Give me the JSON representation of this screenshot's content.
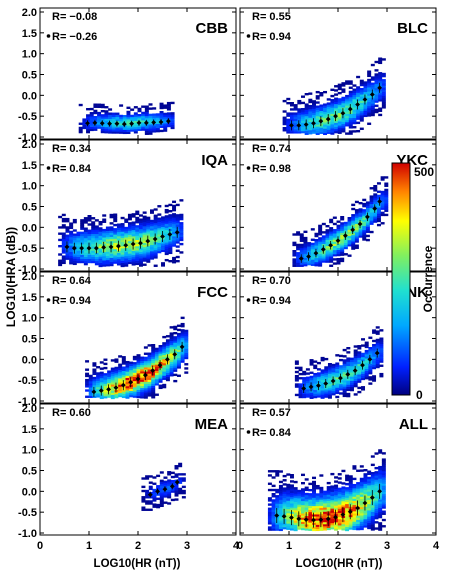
{
  "figure": {
    "ylabel": "LOG10(HRA (dB))",
    "xlabel": "LOG10(HR (nT))",
    "colorbar_label": "Occurrence",
    "colorbar_ticks": [
      "500",
      "0"
    ],
    "x_ticks": [
      "0",
      "1",
      "2",
      "3",
      "4"
    ],
    "y_ticks": [
      "-1.0",
      "-0.5",
      "0.0",
      "0.5",
      "1.0",
      "1.5",
      "2.0"
    ]
  },
  "chart_data": [
    {
      "type": "heatmap",
      "station": "CBB",
      "r_all": "R= −0.08",
      "r_mean": "R= −0.26",
      "xlim": [
        0,
        4
      ],
      "ylim": [
        -1.0,
        2.0
      ],
      "mean_curve": {
        "x": [
          0.97,
          1.12,
          1.27,
          1.42,
          1.57,
          1.72,
          1.87,
          2.02,
          2.17,
          2.32,
          2.47,
          2.62
        ],
        "y": [
          -0.67,
          -0.66,
          -0.67,
          -0.68,
          -0.68,
          -0.69,
          -0.68,
          -0.66,
          -0.66,
          -0.65,
          -0.64,
          -0.62
        ]
      }
    },
    {
      "type": "heatmap",
      "station": "BLC",
      "r_all": "R=  0.55",
      "r_mean": "R=  0.94",
      "xlim": [
        0,
        4
      ],
      "ylim": [
        -1.0,
        2.0
      ],
      "mean_curve": {
        "x": [
          1.05,
          1.2,
          1.35,
          1.5,
          1.65,
          1.8,
          1.95,
          2.1,
          2.25,
          2.4,
          2.55,
          2.7,
          2.85
        ],
        "y": [
          -0.72,
          -0.72,
          -0.7,
          -0.67,
          -0.62,
          -0.57,
          -0.5,
          -0.43,
          -0.33,
          -0.22,
          -0.1,
          0.02,
          0.18
        ]
      }
    },
    {
      "type": "heatmap",
      "station": "IQA",
      "r_all": "R=  0.34",
      "r_mean": "R=  0.84",
      "xlim": [
        0,
        4
      ],
      "ylim": [
        -1.0,
        2.0
      ],
      "mean_curve": {
        "x": [
          0.55,
          0.7,
          0.85,
          1.0,
          1.15,
          1.3,
          1.45,
          1.6,
          1.75,
          1.9,
          2.05,
          2.2,
          2.35,
          2.5,
          2.65,
          2.8
        ],
        "y": [
          -0.47,
          -0.5,
          -0.5,
          -0.5,
          -0.5,
          -0.48,
          -0.47,
          -0.45,
          -0.43,
          -0.4,
          -0.38,
          -0.33,
          -0.28,
          -0.22,
          -0.17,
          -0.12
        ]
      }
    },
    {
      "type": "heatmap",
      "station": "YKC",
      "r_all": "R=  0.74",
      "r_mean": "R=  0.98",
      "xlim": [
        0,
        4
      ],
      "ylim": [
        -1.0,
        2.0
      ],
      "mean_curve": {
        "x": [
          1.25,
          1.4,
          1.55,
          1.7,
          1.85,
          2.0,
          2.15,
          2.3,
          2.45,
          2.6,
          2.75,
          2.85
        ],
        "y": [
          -0.75,
          -0.7,
          -0.62,
          -0.53,
          -0.43,
          -0.32,
          -0.2,
          -0.06,
          0.08,
          0.25,
          0.45,
          0.62
        ]
      }
    },
    {
      "type": "heatmap",
      "station": "FCC",
      "r_all": "R=  0.64",
      "r_mean": "R=  0.94",
      "xlim": [
        0,
        4
      ],
      "ylim": [
        -1.0,
        2.0
      ],
      "mean_curve": {
        "x": [
          1.1,
          1.25,
          1.4,
          1.55,
          1.7,
          1.85,
          2.0,
          2.15,
          2.3,
          2.45,
          2.6,
          2.75,
          2.9
        ],
        "y": [
          -0.78,
          -0.75,
          -0.72,
          -0.68,
          -0.62,
          -0.55,
          -0.47,
          -0.38,
          -0.27,
          -0.14,
          0.0,
          0.12,
          0.3
        ]
      }
    },
    {
      "type": "heatmap",
      "station": "SNK",
      "r_all": "R=  0.70",
      "r_mean": "R=  0.94",
      "xlim": [
        0,
        4
      ],
      "ylim": [
        -1.0,
        2.0
      ],
      "mean_curve": {
        "x": [
          1.3,
          1.45,
          1.6,
          1.75,
          1.9,
          2.05,
          2.2,
          2.35,
          2.5,
          2.65,
          2.8
        ],
        "y": [
          -0.7,
          -0.66,
          -0.63,
          -0.58,
          -0.52,
          -0.45,
          -0.36,
          -0.27,
          -0.14,
          0.0,
          0.15
        ]
      }
    },
    {
      "type": "heatmap",
      "station": "MEA",
      "r_all": "R=  0.60",
      "xlim": [
        0,
        4
      ],
      "ylim": [
        -1.0,
        2.0
      ],
      "mean_curve": {
        "x": [
          2.25,
          2.4,
          2.55,
          2.7,
          2.8
        ],
        "y": [
          -0.08,
          0.0,
          0.05,
          0.12,
          0.22
        ]
      }
    },
    {
      "type": "heatmap",
      "station": "ALL",
      "r_all": "R=  0.57",
      "r_mean": "R=  0.84",
      "xlim": [
        0,
        4
      ],
      "ylim": [
        -1.0,
        2.0
      ],
      "mean_curve": {
        "x": [
          0.75,
          0.9,
          1.05,
          1.2,
          1.35,
          1.5,
          1.65,
          1.8,
          1.95,
          2.1,
          2.25,
          2.4,
          2.55,
          2.7,
          2.85
        ],
        "y": [
          -0.58,
          -0.6,
          -0.63,
          -0.66,
          -0.68,
          -0.69,
          -0.68,
          -0.66,
          -0.62,
          -0.56,
          -0.49,
          -0.4,
          -0.28,
          -0.15,
          0.0
        ]
      }
    }
  ]
}
